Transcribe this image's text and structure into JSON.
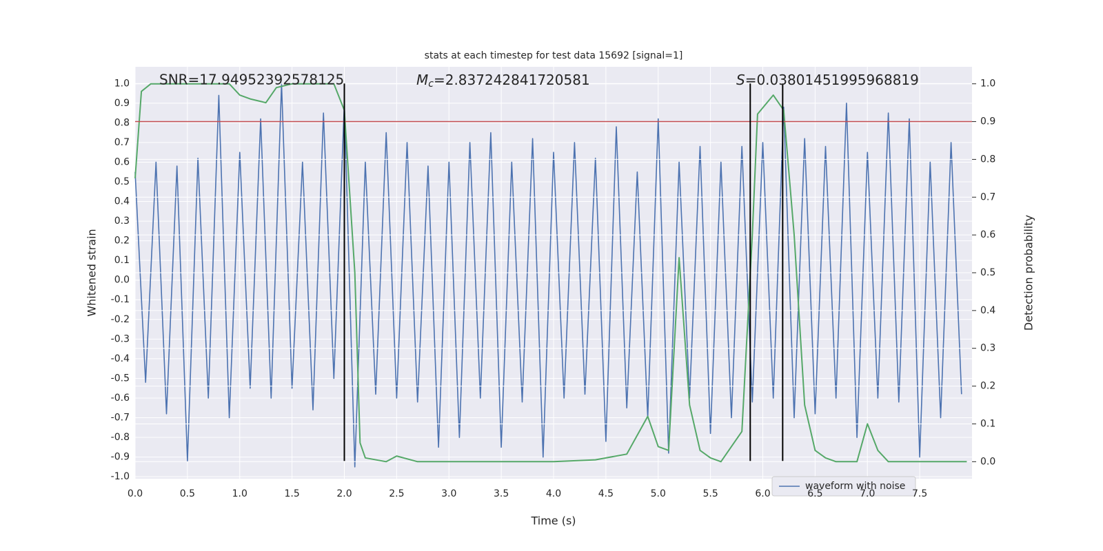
{
  "chart_data": {
    "type": "line",
    "title": "stats at each timestep for test data 15692 [signal=1]",
    "x_label": "Time (s)",
    "y_label": "Whitened strain",
    "y2_label": "Detection probability",
    "annotations": [
      {
        "text": "SNR=17.94952392578125"
      },
      {
        "symbol": "M",
        "subscript": "c",
        "text": "=2.837242841720581"
      },
      {
        "symbol": "S",
        "text": "=0.03801451995968819"
      }
    ],
    "xlim": [
      0,
      8.0
    ],
    "ylim": [
      -1.01,
      1.085
    ],
    "y2lim": [
      -0.045,
      1.045
    ],
    "xticks": [
      {
        "value": 0,
        "label": "0.0"
      },
      0.5,
      {
        "value": 1,
        "label": "1.0"
      },
      1.5,
      {
        "value": 2,
        "label": "2.0"
      },
      2.5,
      {
        "value": 3,
        "label": "3.0"
      },
      3.5,
      {
        "value": 4,
        "label": "4.0"
      },
      4.5,
      {
        "value": 5,
        "label": "5.0"
      },
      5.5,
      {
        "value": 6,
        "label": "6.0"
      },
      6.5,
      {
        "value": 7,
        "label": "7.0"
      },
      7.5
    ],
    "yticks": [
      {
        "value": -1,
        "label": "-1.0"
      },
      -0.9,
      -0.8,
      -0.7,
      -0.6,
      -0.5,
      -0.4,
      -0.3,
      -0.2,
      -0.1,
      {
        "value": 0,
        "label": "0.0"
      },
      0.1,
      0.2,
      0.3,
      0.4,
      0.5,
      0.6,
      0.7,
      0.8,
      0.9,
      {
        "value": 1,
        "label": "1.0"
      }
    ],
    "y2ticks": [
      {
        "value": 0,
        "label": "0.0"
      },
      0.1,
      0.2,
      0.3,
      0.4,
      0.5,
      0.6,
      0.7,
      0.8,
      0.9,
      {
        "value": 1,
        "label": "1.0"
      }
    ],
    "grid": true,
    "legend": "lower right",
    "threshold": {
      "value": 0.9,
      "axis": "y2",
      "color": "#c44e52"
    },
    "vlines": {
      "x": [
        2.0,
        5.88,
        6.19
      ],
      "ymin": -0.92,
      "ymax": 1.0,
      "color": "#000000"
    },
    "series": [
      {
        "name": "waveform with noise",
        "color": "#4c72b0",
        "x": [
          0.0,
          0.1,
          0.2,
          0.3,
          0.4,
          0.5,
          0.6,
          0.7,
          0.8,
          0.9,
          1.0,
          1.1,
          1.2,
          1.3,
          1.4,
          1.5,
          1.6,
          1.7,
          1.8,
          1.9,
          2.0,
          2.1,
          2.2,
          2.3,
          2.4,
          2.5,
          2.6,
          2.7,
          2.8,
          2.9,
          3.0,
          3.1,
          3.2,
          3.3,
          3.4,
          3.5,
          3.6,
          3.7,
          3.8,
          3.9,
          4.0,
          4.1,
          4.2,
          4.3,
          4.4,
          4.5,
          4.6,
          4.7,
          4.8,
          4.9,
          5.0,
          5.1,
          5.2,
          5.3,
          5.4,
          5.5,
          5.6,
          5.7,
          5.8,
          5.9,
          6.0,
          6.1,
          6.2,
          6.3,
          6.4,
          6.5,
          6.6,
          6.7,
          6.8,
          6.9,
          7.0,
          7.1,
          7.2,
          7.3,
          7.4,
          7.5,
          7.6,
          7.7,
          7.8,
          7.9
        ],
        "values": [
          0.55,
          -0.52,
          0.6,
          -0.68,
          0.58,
          -0.92,
          0.62,
          -0.6,
          0.94,
          -0.7,
          0.65,
          -0.55,
          0.82,
          -0.6,
          1.0,
          -0.55,
          0.6,
          -0.66,
          0.85,
          -0.5,
          0.9,
          -0.95,
          0.6,
          -0.58,
          0.75,
          -0.6,
          0.7,
          -0.62,
          0.58,
          -0.85,
          0.6,
          -0.8,
          0.7,
          -0.6,
          0.75,
          -0.85,
          0.6,
          -0.62,
          0.72,
          -0.9,
          0.65,
          -0.6,
          0.7,
          -0.58,
          0.62,
          -0.82,
          0.78,
          -0.65,
          0.55,
          -0.7,
          0.82,
          -0.88,
          0.6,
          -0.6,
          0.68,
          -0.78,
          0.6,
          -0.7,
          0.68,
          -0.62,
          0.7,
          -0.6,
          0.88,
          -0.7,
          0.72,
          -0.68,
          0.68,
          -0.6,
          0.9,
          -0.8,
          0.65,
          -0.6,
          0.85,
          -0.62,
          0.82,
          -0.9,
          0.6,
          -0.7,
          0.7,
          -0.58
        ]
      },
      {
        "color": "#55a868",
        "axis": "y2",
        "x": [
          0.0,
          0.06,
          0.15,
          0.5,
          0.9,
          1.0,
          1.1,
          1.25,
          1.35,
          1.5,
          1.9,
          2.0,
          2.1,
          2.15,
          2.2,
          2.4,
          2.5,
          2.7,
          3.0,
          3.5,
          4.0,
          4.4,
          4.7,
          4.9,
          5.0,
          5.1,
          5.2,
          5.3,
          5.4,
          5.5,
          5.6,
          5.8,
          5.9,
          5.95,
          6.1,
          6.2,
          6.3,
          6.4,
          6.5,
          6.6,
          6.7,
          6.9,
          7.0,
          7.1,
          7.2,
          7.5,
          7.95
        ],
        "values": [
          0.75,
          0.98,
          1.0,
          1.0,
          1.0,
          0.97,
          0.96,
          0.95,
          0.99,
          1.0,
          1.0,
          0.93,
          0.5,
          0.05,
          0.01,
          0.0,
          0.015,
          0.0,
          0.0,
          0.0,
          0.0,
          0.005,
          0.02,
          0.12,
          0.04,
          0.03,
          0.54,
          0.15,
          0.03,
          0.01,
          0.0,
          0.08,
          0.6,
          0.92,
          0.97,
          0.93,
          0.6,
          0.15,
          0.03,
          0.01,
          0.0,
          0.0,
          0.1,
          0.03,
          0.0,
          0.0,
          0.0
        ]
      }
    ]
  }
}
